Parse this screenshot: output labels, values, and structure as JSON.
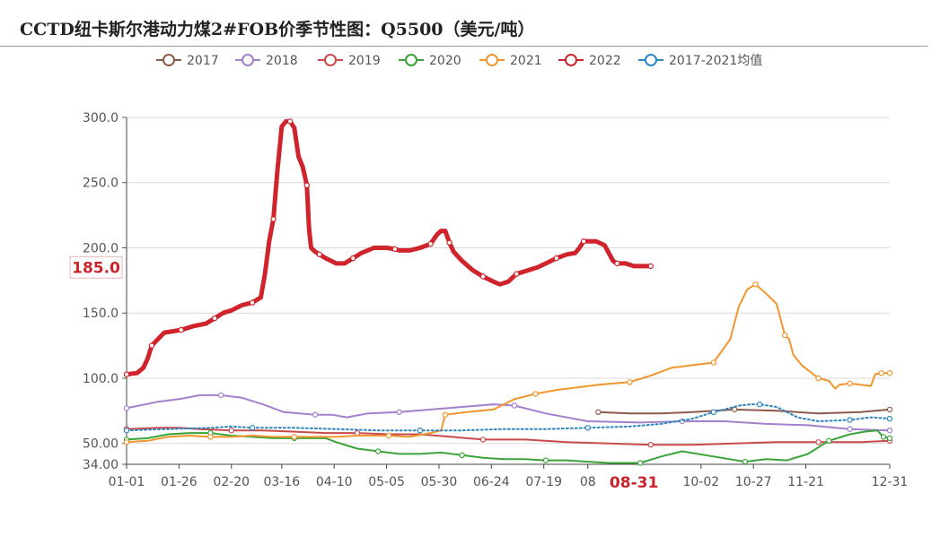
{
  "title": "CCTD纽卡斯尔港动力煤2#FOB价季节性图：Q5500（美元/吨）",
  "chart_data": {
    "type": "line",
    "xlim": [
      0,
      364
    ],
    "ylim": [
      34,
      300
    ],
    "yticks": [
      {
        "label": "300.0",
        "v": 300
      },
      {
        "label": "250.0",
        "v": 250
      },
      {
        "label": "200.0",
        "v": 200
      },
      {
        "label": "150.0",
        "v": 150
      },
      {
        "label": "100.0",
        "v": 100
      },
      {
        "label": "50.00",
        "v": 50
      },
      {
        "label": "34.00",
        "v": 34
      }
    ],
    "xticks": [
      {
        "label": "01-01",
        "d": 0
      },
      {
        "label": "01-26",
        "d": 25
      },
      {
        "label": "02-20",
        "d": 50
      },
      {
        "label": "03-16",
        "d": 74
      },
      {
        "label": "04-10",
        "d": 99
      },
      {
        "label": "05-05",
        "d": 124
      },
      {
        "label": "05-30",
        "d": 149
      },
      {
        "label": "06-24",
        "d": 174
      },
      {
        "label": "07-19",
        "d": 199
      },
      {
        "label": "08",
        "d": 220
      },
      {
        "label": "10-02",
        "d": 274
      },
      {
        "label": "10-27",
        "d": 299
      },
      {
        "label": "11-21",
        "d": 324
      },
      {
        "label": "12-31",
        "d": 364
      }
    ],
    "highlight_x": {
      "label": "08-31",
      "d": 242,
      "color": "#c9232b"
    },
    "highlight_y": {
      "label": "185.0",
      "v": 185,
      "color": "#c9232b"
    },
    "series": [
      {
        "name": "2017",
        "color": "#8c5a4a",
        "width": 2,
        "dash": "",
        "points": [
          [
            225,
            74
          ],
          [
            240,
            73
          ],
          [
            255,
            73
          ],
          [
            270,
            74
          ],
          [
            290,
            76
          ],
          [
            310,
            75
          ],
          [
            330,
            73
          ],
          [
            350,
            74
          ],
          [
            364,
            76
          ]
        ]
      },
      {
        "name": "2018",
        "color": "#a37fcc",
        "width": 2,
        "dash": "",
        "points": [
          [
            0,
            77
          ],
          [
            15,
            82
          ],
          [
            25,
            84
          ],
          [
            35,
            87
          ],
          [
            45,
            87
          ],
          [
            55,
            85
          ],
          [
            65,
            80
          ],
          [
            75,
            74
          ],
          [
            90,
            72
          ],
          [
            98,
            72
          ],
          [
            105,
            70
          ],
          [
            115,
            73
          ],
          [
            130,
            74
          ],
          [
            145,
            76
          ],
          [
            160,
            78
          ],
          [
            175,
            80
          ],
          [
            185,
            79
          ],
          [
            200,
            73
          ],
          [
            220,
            67
          ],
          [
            245,
            66
          ],
          [
            265,
            67
          ],
          [
            285,
            67
          ],
          [
            305,
            65
          ],
          [
            325,
            64
          ],
          [
            345,
            61
          ],
          [
            364,
            60
          ]
        ]
      },
      {
        "name": "2019",
        "color": "#c94a4a",
        "width": 2,
        "dash": "",
        "points": [
          [
            0,
            61
          ],
          [
            15,
            62
          ],
          [
            25,
            62
          ],
          [
            35,
            61
          ],
          [
            50,
            60
          ],
          [
            65,
            60
          ],
          [
            80,
            59
          ],
          [
            95,
            58
          ],
          [
            110,
            58
          ],
          [
            125,
            57
          ],
          [
            140,
            57
          ],
          [
            155,
            55
          ],
          [
            170,
            53
          ],
          [
            190,
            53
          ],
          [
            210,
            51
          ],
          [
            230,
            50
          ],
          [
            250,
            49
          ],
          [
            270,
            49
          ],
          [
            290,
            50
          ],
          [
            310,
            51
          ],
          [
            330,
            51
          ],
          [
            350,
            51
          ],
          [
            364,
            52
          ]
        ]
      },
      {
        "name": "2020",
        "color": "#3aa33a",
        "width": 2,
        "dash": "",
        "points": [
          [
            0,
            53
          ],
          [
            10,
            54
          ],
          [
            20,
            57
          ],
          [
            30,
            58
          ],
          [
            40,
            58
          ],
          [
            50,
            56
          ],
          [
            60,
            55
          ],
          [
            70,
            54
          ],
          [
            80,
            54
          ],
          [
            95,
            54
          ],
          [
            100,
            51
          ],
          [
            110,
            46
          ],
          [
            120,
            44
          ],
          [
            130,
            42
          ],
          [
            140,
            42
          ],
          [
            150,
            43
          ],
          [
            160,
            41
          ],
          [
            170,
            39
          ],
          [
            180,
            38
          ],
          [
            190,
            38
          ],
          [
            200,
            37
          ],
          [
            210,
            37
          ],
          [
            220,
            36
          ],
          [
            230,
            35
          ],
          [
            245,
            35
          ],
          [
            255,
            40
          ],
          [
            265,
            44
          ],
          [
            280,
            40
          ],
          [
            295,
            36
          ],
          [
            305,
            38
          ],
          [
            315,
            37
          ],
          [
            325,
            42
          ],
          [
            335,
            52
          ],
          [
            345,
            57
          ],
          [
            352,
            59
          ],
          [
            358,
            60
          ],
          [
            361,
            55
          ],
          [
            364,
            54
          ]
        ]
      },
      {
        "name": "2021",
        "color": "#f0962e",
        "width": 2,
        "dash": "",
        "points": [
          [
            0,
            51
          ],
          [
            10,
            52
          ],
          [
            20,
            55
          ],
          [
            30,
            56
          ],
          [
            40,
            55
          ],
          [
            50,
            55
          ],
          [
            60,
            56
          ],
          [
            70,
            55
          ],
          [
            80,
            55
          ],
          [
            90,
            55
          ],
          [
            100,
            55
          ],
          [
            110,
            56
          ],
          [
            125,
            56
          ],
          [
            135,
            55
          ],
          [
            145,
            58
          ],
          [
            150,
            60
          ],
          [
            152,
            72
          ],
          [
            162,
            74
          ],
          [
            175,
            76
          ],
          [
            185,
            84
          ],
          [
            195,
            88
          ],
          [
            205,
            91
          ],
          [
            215,
            93
          ],
          [
            225,
            95
          ],
          [
            240,
            97
          ],
          [
            250,
            102
          ],
          [
            260,
            108
          ],
          [
            270,
            110
          ],
          [
            280,
            112
          ],
          [
            288,
            130
          ],
          [
            292,
            155
          ],
          [
            296,
            168
          ],
          [
            300,
            172
          ],
          [
            305,
            165
          ],
          [
            310,
            157
          ],
          [
            312,
            145
          ],
          [
            314,
            133
          ],
          [
            316,
            130
          ],
          [
            318,
            118
          ],
          [
            322,
            110
          ],
          [
            330,
            100
          ],
          [
            335,
            98
          ],
          [
            338,
            92
          ],
          [
            340,
            95
          ],
          [
            345,
            96
          ],
          [
            350,
            95
          ],
          [
            355,
            94
          ],
          [
            357,
            103
          ],
          [
            360,
            104
          ],
          [
            364,
            104
          ]
        ]
      },
      {
        "name": "2022",
        "color": "#d0242c",
        "width": 5,
        "dash": "",
        "points": [
          [
            0,
            103
          ],
          [
            5,
            104
          ],
          [
            8,
            108
          ],
          [
            10,
            115
          ],
          [
            12,
            125
          ],
          [
            15,
            130
          ],
          [
            18,
            135
          ],
          [
            22,
            136
          ],
          [
            26,
            137
          ],
          [
            28,
            138
          ],
          [
            32,
            140
          ],
          [
            38,
            142
          ],
          [
            42,
            146
          ],
          [
            46,
            150
          ],
          [
            50,
            152
          ],
          [
            55,
            156
          ],
          [
            60,
            158
          ],
          [
            64,
            162
          ],
          [
            66,
            180
          ],
          [
            68,
            205
          ],
          [
            70,
            222
          ],
          [
            72,
            260
          ],
          [
            74,
            293
          ],
          [
            76,
            297
          ],
          [
            78,
            297
          ],
          [
            80,
            292
          ],
          [
            82,
            270
          ],
          [
            84,
            262
          ],
          [
            86,
            248
          ],
          [
            87,
            215
          ],
          [
            88,
            200
          ],
          [
            90,
            197
          ],
          [
            92,
            195
          ],
          [
            95,
            192
          ],
          [
            100,
            188
          ],
          [
            104,
            188
          ],
          [
            108,
            192
          ],
          [
            112,
            196
          ],
          [
            118,
            200
          ],
          [
            124,
            200
          ],
          [
            128,
            199
          ],
          [
            130,
            198
          ],
          [
            135,
            198
          ],
          [
            140,
            200
          ],
          [
            145,
            203
          ],
          [
            148,
            210
          ],
          [
            150,
            213
          ],
          [
            152,
            213
          ],
          [
            154,
            204
          ],
          [
            156,
            197
          ],
          [
            160,
            190
          ],
          [
            165,
            183
          ],
          [
            170,
            178
          ],
          [
            175,
            174
          ],
          [
            178,
            172
          ],
          [
            182,
            174
          ],
          [
            186,
            180
          ],
          [
            190,
            182
          ],
          [
            196,
            185
          ],
          [
            200,
            188
          ],
          [
            205,
            192
          ],
          [
            210,
            195
          ],
          [
            214,
            196
          ],
          [
            216,
            200
          ],
          [
            218,
            205
          ],
          [
            224,
            205
          ],
          [
            228,
            202
          ],
          [
            232,
            190
          ],
          [
            234,
            188
          ],
          [
            238,
            188
          ],
          [
            242,
            186
          ],
          [
            246,
            186
          ],
          [
            250,
            186
          ]
        ]
      },
      {
        "name": "2017-2021均值",
        "color": "#2e86c1",
        "width": 2,
        "dash": "2,3",
        "points": [
          [
            0,
            60
          ],
          [
            20,
            61
          ],
          [
            40,
            62
          ],
          [
            50,
            63
          ],
          [
            60,
            62
          ],
          [
            80,
            62
          ],
          [
            100,
            61
          ],
          [
            120,
            60
          ],
          [
            140,
            60
          ],
          [
            160,
            60
          ],
          [
            180,
            61
          ],
          [
            200,
            61
          ],
          [
            220,
            62
          ],
          [
            240,
            63
          ],
          [
            255,
            65
          ],
          [
            270,
            69
          ],
          [
            280,
            74
          ],
          [
            285,
            76
          ],
          [
            292,
            79
          ],
          [
            298,
            80
          ],
          [
            302,
            80
          ],
          [
            310,
            78
          ],
          [
            320,
            70
          ],
          [
            330,
            67
          ],
          [
            345,
            68
          ],
          [
            355,
            70
          ],
          [
            364,
            69
          ]
        ]
      }
    ]
  }
}
